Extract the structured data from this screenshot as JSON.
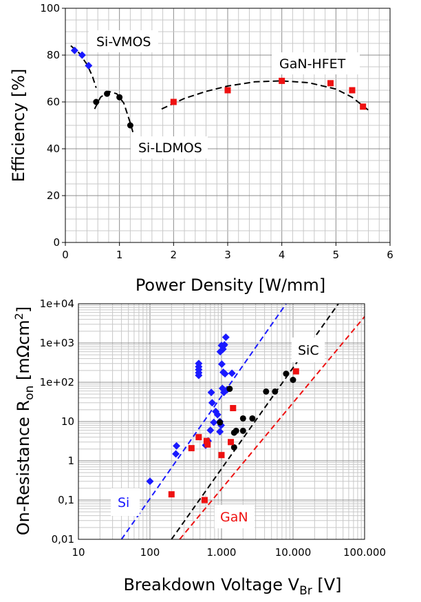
{
  "chart_data": [
    {
      "type": "scatter",
      "xlabel": "Power Density [W/mm]",
      "ylabel": "Efficiency [%]",
      "xlim": [
        0,
        6
      ],
      "ylim": [
        0,
        100
      ],
      "x_ticks": [
        "0",
        "1",
        "2",
        "3",
        "4",
        "5",
        "6"
      ],
      "y_ticks": [
        "0",
        "20",
        "40",
        "60",
        "80",
        "100"
      ],
      "grid": true,
      "annotations": [
        "Si-VMOS",
        "Si-LDMOS",
        "GaN-HFET"
      ],
      "series": [
        {
          "name": "Si-VMOS",
          "color": "#1a1aff",
          "marker": "diamond",
          "points": [
            [
              0.17,
              82
            ],
            [
              0.31,
              80
            ],
            [
              0.43,
              75.5
            ]
          ],
          "fit": [
            [
              0.1,
              84
            ],
            [
              0.25,
              81
            ],
            [
              0.4,
              76
            ],
            [
              0.5,
              71
            ],
            [
              0.57,
              66
            ]
          ]
        },
        {
          "name": "Si-LDMOS",
          "color": "#000000",
          "marker": "circle",
          "points": [
            [
              0.57,
              60
            ],
            [
              0.77,
              63.5
            ],
            [
              1.0,
              62
            ],
            [
              1.2,
              50
            ]
          ],
          "fit": [
            [
              0.54,
              57
            ],
            [
              0.65,
              62
            ],
            [
              0.8,
              64.5
            ],
            [
              0.95,
              63.5
            ],
            [
              1.08,
              59.5
            ],
            [
              1.2,
              51
            ],
            [
              1.25,
              47
            ]
          ]
        },
        {
          "name": "GaN-HFET",
          "color": "#ee1111",
          "marker": "square",
          "points": [
            [
              2.0,
              60
            ],
            [
              3.0,
              65
            ],
            [
              4.0,
              69
            ],
            [
              4.9,
              68
            ],
            [
              5.3,
              65
            ],
            [
              5.5,
              58
            ]
          ],
          "fit": [
            [
              1.78,
              57
            ],
            [
              2.2,
              61.5
            ],
            [
              2.6,
              64.5
            ],
            [
              3.0,
              66.8
            ],
            [
              3.5,
              68.6
            ],
            [
              4.0,
              69
            ],
            [
              4.5,
              68.2
            ],
            [
              5.0,
              65.5
            ],
            [
              5.3,
              62
            ],
            [
              5.6,
              56.5
            ]
          ]
        }
      ]
    },
    {
      "type": "scatter",
      "xlabel": "Breakdown Voltage V",
      "xlabel_sub": "Br",
      "xlabel_unit": " [V]",
      "ylabel": "On-Resistance R",
      "ylabel_sub": "on",
      "ylabel_unit": " [mΩcm",
      "ylabel_sup": "2",
      "ylabel_end": "]",
      "x_scale": "log",
      "y_scale": "log",
      "xlim": [
        10,
        100000
      ],
      "ylim": [
        0.01,
        10000
      ],
      "grid": true,
      "x_ticks": [
        {
          "v": 10,
          "label": "10"
        },
        {
          "v": 100,
          "label": "100"
        },
        {
          "v": 1000,
          "label": "1.000"
        },
        {
          "v": 10000,
          "label": "10.000"
        },
        {
          "v": 100000,
          "label": "100.000"
        }
      ],
      "y_ticks": [
        {
          "v": 0.01,
          "label": "0,01"
        },
        {
          "v": 0.1,
          "label": "0,1"
        },
        {
          "v": 1,
          "label": "1"
        },
        {
          "v": 10,
          "label": "10"
        },
        {
          "v": 100,
          "label": "1e+02"
        },
        {
          "v": 1000,
          "label": "1e+03"
        },
        {
          "v": 10000,
          "label": "1e+04"
        }
      ],
      "annotations": [
        "Si",
        "SiC",
        "GaN"
      ],
      "series": [
        {
          "name": "Si",
          "color": "#1a1aff",
          "marker": "diamond",
          "points": [
            [
              100,
              0.3
            ],
            [
              230,
              1.5
            ],
            [
              235,
              2.4
            ],
            [
              480,
              300
            ],
            [
              480,
              250
            ],
            [
              480,
              210
            ],
            [
              480,
              175
            ],
            [
              480,
              150
            ],
            [
              600,
              2.5
            ],
            [
              650,
              3.2
            ],
            [
              700,
              6
            ],
            [
              720,
              55
            ],
            [
              740,
              30
            ],
            [
              780,
              9.5
            ],
            [
              830,
              18
            ],
            [
              880,
              15
            ],
            [
              950,
              10
            ],
            [
              950,
              5.5
            ],
            [
              960,
              600
            ],
            [
              990,
              8
            ],
            [
              1000,
              870
            ],
            [
              1010,
              290
            ],
            [
              1030,
              70
            ],
            [
              1050,
              700
            ],
            [
              1060,
              180
            ],
            [
              1080,
              55
            ],
            [
              1100,
              900
            ],
            [
              1120,
              165
            ],
            [
              1150,
              1400
            ],
            [
              1200,
              65
            ],
            [
              1400,
              170
            ]
          ],
          "limit_line": [
            [
              40,
              0.01
            ],
            [
              8000,
              10000
            ]
          ]
        },
        {
          "name": "SiC",
          "color": "#000000",
          "marker": "circle",
          "points": [
            [
              950,
              9.5
            ],
            [
              1300,
              68
            ],
            [
              1500,
              2.2
            ],
            [
              1500,
              5.2
            ],
            [
              1600,
              5.8
            ],
            [
              2000,
              12
            ],
            [
              2000,
              5.8
            ],
            [
              2700,
              12
            ],
            [
              4200,
              58
            ],
            [
              5600,
              58
            ],
            [
              8000,
              165
            ],
            [
              10000,
              115
            ]
          ],
          "limit_line": [
            [
              200,
              0.01
            ],
            [
              43000,
              10000
            ]
          ]
        },
        {
          "name": "GaN",
          "color": "#ee1111",
          "marker": "square",
          "points": [
            [
              200,
              0.14
            ],
            [
              380,
              2.1
            ],
            [
              480,
              4.0
            ],
            [
              580,
              0.1
            ],
            [
              620,
              3.2
            ],
            [
              640,
              2.6
            ],
            [
              1000,
              1.4
            ],
            [
              1350,
              3.0
            ],
            [
              1450,
              22
            ],
            [
              11000,
              190
            ]
          ],
          "limit_line": [
            [
              260,
              0.01
            ],
            [
              100000,
              4700
            ]
          ]
        }
      ]
    }
  ]
}
